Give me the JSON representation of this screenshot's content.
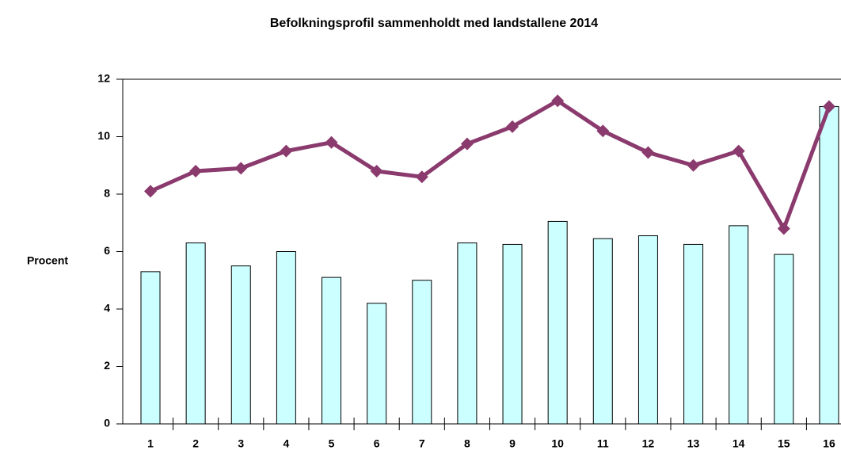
{
  "chart_data": {
    "type": "bar_line",
    "title": "Befolkningsprofil sammenholdt med landstallene 2014",
    "ylabel": "Procent",
    "categories": [
      "1",
      "2",
      "3",
      "4",
      "5",
      "6",
      "7",
      "8",
      "9",
      "10",
      "11",
      "12",
      "13",
      "14",
      "15",
      "16"
    ],
    "series": [
      {
        "type": "bar",
        "color": "#ccffff",
        "values": [
          5.3,
          6.3,
          5.5,
          6.0,
          5.1,
          4.2,
          5.0,
          6.3,
          6.25,
          7.05,
          6.45,
          6.55,
          6.25,
          6.9,
          5.9,
          11.05
        ]
      },
      {
        "type": "line",
        "color": "#8b3a6e",
        "values": [
          8.1,
          8.8,
          8.9,
          9.5,
          9.8,
          8.8,
          8.6,
          9.75,
          10.35,
          11.25,
          10.2,
          9.45,
          9.0,
          9.5,
          6.8,
          11.05
        ]
      }
    ],
    "ylim": [
      0,
      12
    ],
    "yticks": [
      0,
      2,
      4,
      6,
      8,
      10,
      12
    ]
  }
}
